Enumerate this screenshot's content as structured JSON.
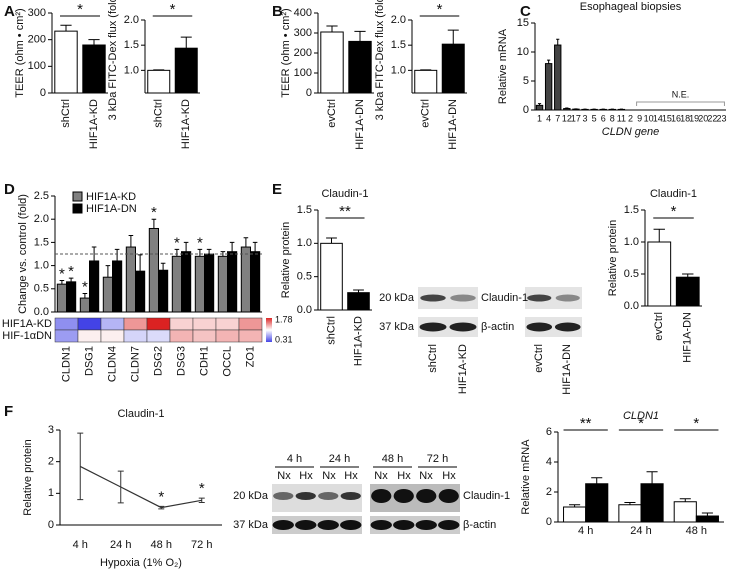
{
  "chart_data": [
    {
      "type": "bar",
      "panel": "A",
      "ylabel": "TEER (ohm • cm²)",
      "categories": [
        "shCtrl",
        "HIF1A-KD"
      ],
      "values": [
        232,
        180
      ],
      "errors": [
        22,
        20
      ],
      "colors": [
        "#ffffff",
        "#000000"
      ],
      "ylim": [
        0,
        300
      ],
      "yticks": [
        0,
        100,
        200,
        300
      ],
      "significance": "*"
    },
    {
      "type": "bar",
      "ylabel": "3 kDa FITC-Dex flux (fold)",
      "categories": [
        "shCtrl",
        "HIF1A-KD"
      ],
      "values": [
        1.0,
        1.44
      ],
      "errors": [
        0.01,
        0.22
      ],
      "colors": [
        "#ffffff",
        "#000000"
      ],
      "ylim": [
        0.55,
        2.0
      ],
      "yticks": [
        {
          "value": 1.0,
          "label": "1.0"
        },
        {
          "value": 1.5,
          "label": "1.5"
        },
        {
          "value": 2.0,
          "label": "2.0"
        }
      ],
      "significance": "*"
    },
    {
      "type": "bar",
      "panel": "B",
      "ylabel": "TEER (ohm • cm²)",
      "categories": [
        "evCtrl",
        "HIF1A-DN"
      ],
      "values": [
        305,
        258
      ],
      "errors": [
        30,
        50
      ],
      "colors": [
        "#ffffff",
        "#000000"
      ],
      "ylim": [
        0,
        400
      ],
      "yticks": [
        0,
        100,
        200,
        300,
        400
      ]
    },
    {
      "type": "bar",
      "ylabel": "3 kDa FITC-Dex flux (fold)",
      "categories": [
        "evCtrl",
        "HIF1A-DN"
      ],
      "values": [
        1.0,
        1.52
      ],
      "errors": [
        0.01,
        0.28
      ],
      "colors": [
        "#ffffff",
        "#000000"
      ],
      "ylim": [
        0.55,
        2.0
      ],
      "yticks": [
        {
          "value": 1.0,
          "label": "1.0"
        },
        {
          "value": 1.5,
          "label": "1.5"
        },
        {
          "value": 2.0,
          "label": "2.0"
        }
      ],
      "significance": "*"
    },
    {
      "type": "bar",
      "panel": "C",
      "title": "Esophageal biopsies",
      "ylabel": "Relative mRNA",
      "xlabel": "CLDN gene",
      "annotation": "N.E.",
      "categories": [
        "1",
        "4",
        "7",
        "12",
        "17",
        "3",
        "5",
        "6",
        "8",
        "11",
        "2",
        "9",
        "10",
        "14",
        "15",
        "16",
        "18",
        "19",
        "20",
        "22",
        "23"
      ],
      "values": [
        0.8,
        8.0,
        11.2,
        0.25,
        0.15,
        0.1,
        0.1,
        0.1,
        0.1,
        0.1,
        0,
        0,
        0,
        0,
        0,
        0,
        0,
        0,
        0,
        0,
        0
      ],
      "errors": [
        0.3,
        0.6,
        1.0,
        0.1,
        0.05,
        0.05,
        0.05,
        0.05,
        0.05,
        0.05,
        0,
        0,
        0,
        0,
        0,
        0,
        0,
        0,
        0,
        0,
        0
      ],
      "color": "#444444",
      "ylim": [
        0,
        15
      ],
      "yticks": [
        0,
        5,
        10,
        15
      ]
    },
    {
      "type": "bar",
      "panel": "D",
      "ylabel": "Change vs. control (fold)",
      "categories": [
        "CLDN1",
        "DSG1",
        "CLDN4",
        "CLDN7",
        "DSG2",
        "DSG3",
        "CDH1",
        "OCCL",
        "ZO1"
      ],
      "series": [
        {
          "name": "HIF1A-KD",
          "color": "#808080",
          "values": [
            0.6,
            0.3,
            0.75,
            1.4,
            1.8,
            1.2,
            1.2,
            1.2,
            1.4
          ],
          "errors": [
            0.08,
            0.1,
            0.25,
            0.25,
            0.2,
            0.15,
            0.15,
            0.1,
            0.2
          ],
          "significance": [
            "*",
            "*",
            null,
            null,
            "*",
            "*",
            "*",
            null,
            null
          ]
        },
        {
          "name": "HIF1A-DN",
          "color": "#000000",
          "values": [
            0.65,
            1.1,
            1.1,
            0.88,
            0.9,
            1.3,
            1.25,
            1.3,
            1.3
          ],
          "errors": [
            0.08,
            0.3,
            0.25,
            0.35,
            0.15,
            0.2,
            0.1,
            0.2,
            0.2
          ],
          "significance": [
            "*",
            null,
            null,
            null,
            null,
            null,
            null,
            null,
            null
          ]
        }
      ],
      "ylim": [
        0,
        2.5
      ],
      "yticks": [
        {
          "value": 0,
          "label": "0.0"
        },
        {
          "value": 0.5,
          "label": "0.5"
        },
        {
          "value": 1,
          "label": "1.0"
        },
        {
          "value": 1.5,
          "label": "1.5"
        },
        {
          "value": 2,
          "label": "2.0"
        },
        {
          "value": 2.5,
          "label": "2.5"
        }
      ],
      "reference_line": 1.25,
      "heatmap_rows": [
        "HIF1A-KD",
        "HIF-1αDN"
      ],
      "clim": [
        0.31,
        1.78
      ]
    },
    {
      "type": "bar",
      "panel": "E",
      "title": "Claudin-1",
      "ylabel": "Relative protein",
      "categories": [
        "shCtrl",
        "HIF1A-KD"
      ],
      "values": [
        1.0,
        0.26
      ],
      "errors": [
        0.08,
        0.04
      ],
      "colors": [
        "#ffffff",
        "#000000"
      ],
      "ylim": [
        0,
        1.5
      ],
      "yticks": [
        {
          "value": 0,
          "label": "0.0"
        },
        {
          "value": 0.5,
          "label": "0.5"
        },
        {
          "value": 1,
          "label": "1.0"
        },
        {
          "value": 1.5,
          "label": "1.5"
        }
      ],
      "significance": "**"
    },
    {
      "type": "bar",
      "title": "Claudin-1",
      "ylabel": "Relative protein",
      "categories": [
        "evCtrl",
        "HIF1A-DN"
      ],
      "values": [
        1.0,
        0.45
      ],
      "errors": [
        0.2,
        0.05
      ],
      "colors": [
        "#ffffff",
        "#000000"
      ],
      "ylim": [
        0,
        1.5
      ],
      "yticks": [
        {
          "value": 0,
          "label": "0.0"
        },
        {
          "value": 0.5,
          "label": "0.5"
        },
        {
          "value": 1,
          "label": "1.0"
        },
        {
          "value": 1.5,
          "label": "1.5"
        }
      ],
      "significance": "*"
    },
    {
      "type": "line",
      "panel": "F",
      "title": "Claudin-1",
      "ylabel": "Relative protein",
      "xlabel": "Hypoxia (1% O₂)",
      "categories": [
        "4 h",
        "24 h",
        "48 h",
        "72 h"
      ],
      "values": [
        1.85,
        1.2,
        0.55,
        0.78
      ],
      "errors": [
        1.05,
        0.5,
        0.04,
        0.07
      ],
      "color": "#333333",
      "ylim": [
        0,
        3
      ],
      "yticks": [
        0,
        1,
        2,
        3
      ],
      "significance": [
        null,
        null,
        "*",
        "*"
      ]
    },
    {
      "type": "bar",
      "title": "CLDN1",
      "ylabel": "Relative mRNA",
      "categories": [
        "4 h",
        "24 h",
        "48 h"
      ],
      "series": [
        {
          "color": "#ffffff",
          "values": [
            1.0,
            1.15,
            1.35
          ],
          "errors": [
            0.15,
            0.15,
            0.2
          ]
        },
        {
          "color": "#000000",
          "values": [
            2.55,
            2.55,
            0.4
          ],
          "errors": [
            0.4,
            0.8,
            0.2
          ]
        }
      ],
      "ylim": [
        0,
        6
      ],
      "yticks": [
        0,
        2,
        4,
        6
      ],
      "significance": [
        "**",
        "*",
        "*"
      ]
    }
  ],
  "blots": [
    {
      "markers": [
        "20 kDa",
        "37 kDa"
      ],
      "proteins": [
        "Claudin-1",
        "β-actin"
      ],
      "lanes": [
        "shCtrl",
        "HIF1A-KD",
        "evCtrl",
        "HIF1A-DN"
      ]
    },
    {
      "markers": [
        "20 kDa",
        "37 kDa"
      ],
      "proteins": [
        "Claudin-1",
        "β-actin"
      ],
      "timepoints": [
        "4 h",
        "24 h",
        "48 h",
        "72 h"
      ],
      "conditions": [
        "Nx",
        "Hx",
        "Nx",
        "Hx",
        "Nx",
        "Hx",
        "Nx",
        "Hx"
      ]
    }
  ]
}
